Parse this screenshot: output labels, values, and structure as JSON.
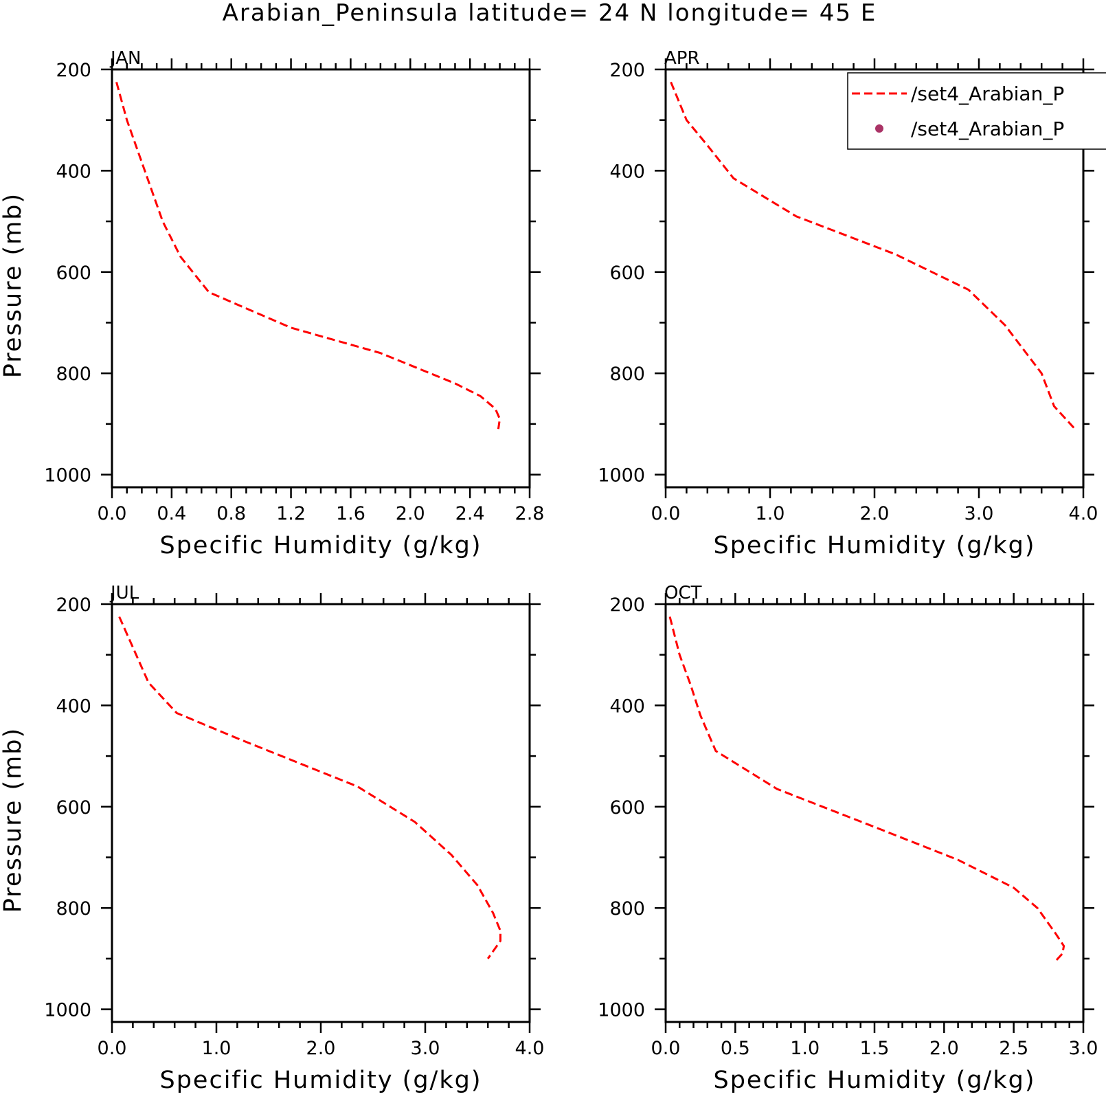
{
  "title": "Arabian_Peninsula  latitude= 24 N longitude= 45 E",
  "legend": {
    "entries": [
      {
        "label": "/set4_Arabian_P",
        "style": "dashed-line",
        "color": "#ff0000"
      },
      {
        "label": "/set4_Arabian_P",
        "style": "dot",
        "color": "#aa3366"
      }
    ],
    "placement": "top-right"
  },
  "chart_data": [
    {
      "type": "line",
      "panel": "JAN",
      "title": "JAN",
      "xlabel": "Specific Humidity (g/kg)",
      "ylabel": "Pressure (mb)",
      "xlim": [
        0.0,
        2.8
      ],
      "ylim": [
        1025,
        200
      ],
      "y_inverted": true,
      "xticks": [
        0.0,
        0.4,
        0.8,
        1.2,
        1.6,
        2.0,
        2.4,
        2.8
      ],
      "xtick_labels": [
        "0.0",
        "0.4",
        "0.8",
        "1.2",
        "1.6",
        "2.0",
        "2.4",
        "2.8"
      ],
      "xminor": 0.1,
      "yticks": [
        200,
        400,
        600,
        800,
        1000
      ],
      "ytick_labels": [
        "200",
        "400",
        "600",
        "800",
        "1000"
      ],
      "yminor": 100,
      "series": [
        {
          "values": [
            [
              0.03,
              225
            ],
            [
              0.1,
              300
            ],
            [
              0.22,
              400
            ],
            [
              0.34,
              500
            ],
            [
              0.46,
              570
            ],
            [
              0.65,
              640
            ],
            [
              1.2,
              710
            ],
            [
              1.8,
              760
            ],
            [
              2.3,
              820
            ],
            [
              2.47,
              845
            ],
            [
              2.57,
              870
            ],
            [
              2.6,
              890
            ],
            [
              2.59,
              910
            ]
          ]
        }
      ]
    },
    {
      "type": "line",
      "panel": "APR",
      "title": "APR",
      "xlabel": "Specific Humidity (g/kg)",
      "ylabel": "",
      "xlim": [
        0.0,
        4.0
      ],
      "ylim": [
        1025,
        200
      ],
      "y_inverted": true,
      "xticks": [
        0.0,
        1.0,
        2.0,
        3.0,
        4.0
      ],
      "xtick_labels": [
        "0.0",
        "1.0",
        "2.0",
        "3.0",
        "4.0"
      ],
      "xminor": 0.2,
      "yticks": [
        200,
        400,
        600,
        800,
        1000
      ],
      "ytick_labels": [
        "200",
        "400",
        "600",
        "800",
        "1000"
      ],
      "yminor": 100,
      "series": [
        {
          "values": [
            [
              0.05,
              225
            ],
            [
              0.12,
              260
            ],
            [
              0.2,
              300
            ],
            [
              0.4,
              350
            ],
            [
              0.65,
              415
            ],
            [
              1.25,
              490
            ],
            [
              2.2,
              565
            ],
            [
              2.9,
              635
            ],
            [
              3.25,
              705
            ],
            [
              3.6,
              800
            ],
            [
              3.72,
              865
            ],
            [
              3.92,
              910
            ]
          ]
        }
      ]
    },
    {
      "type": "line",
      "panel": "JUL",
      "title": "JUL",
      "xlabel": "Specific Humidity (g/kg)",
      "ylabel": "Pressure (mb)",
      "xlim": [
        0.0,
        4.0
      ],
      "ylim": [
        1025,
        200
      ],
      "y_inverted": true,
      "xticks": [
        0.0,
        1.0,
        2.0,
        3.0,
        4.0
      ],
      "xtick_labels": [
        "0.0",
        "1.0",
        "2.0",
        "3.0",
        "4.0"
      ],
      "xminor": 0.2,
      "yticks": [
        200,
        400,
        600,
        800,
        1000
      ],
      "ytick_labels": [
        "200",
        "400",
        "600",
        "800",
        "1000"
      ],
      "yminor": 100,
      "series": [
        {
          "values": [
            [
              0.07,
              225
            ],
            [
              0.35,
              355
            ],
            [
              0.62,
              415
            ],
            [
              1.2,
              465
            ],
            [
              2.35,
              560
            ],
            [
              2.9,
              630
            ],
            [
              3.25,
              695
            ],
            [
              3.5,
              755
            ],
            [
              3.65,
              810
            ],
            [
              3.72,
              845
            ],
            [
              3.72,
              865
            ],
            [
              3.6,
              900
            ]
          ]
        }
      ]
    },
    {
      "type": "line",
      "panel": "OCT",
      "title": "OCT",
      "xlabel": "Specific Humidity (g/kg)",
      "ylabel": "",
      "xlim": [
        0.0,
        3.0
      ],
      "ylim": [
        1025,
        200
      ],
      "y_inverted": true,
      "xticks": [
        0.0,
        0.5,
        1.0,
        1.5,
        2.0,
        2.5,
        3.0
      ],
      "xtick_labels": [
        "0.0",
        "0.5",
        "1.0",
        "1.5",
        "2.0",
        "2.5",
        "3.0"
      ],
      "xminor": 0.1,
      "yticks": [
        200,
        400,
        600,
        800,
        1000
      ],
      "ytick_labels": [
        "200",
        "400",
        "600",
        "800",
        "1000"
      ],
      "yminor": 100,
      "series": [
        {
          "values": [
            [
              0.03,
              225
            ],
            [
              0.1,
              300
            ],
            [
              0.18,
              360
            ],
            [
              0.25,
              420
            ],
            [
              0.36,
              490
            ],
            [
              0.8,
              565
            ],
            [
              1.5,
              640
            ],
            [
              2.1,
              705
            ],
            [
              2.5,
              760
            ],
            [
              2.67,
              800
            ],
            [
              2.8,
              850
            ],
            [
              2.86,
              875
            ],
            [
              2.85,
              890
            ],
            [
              2.8,
              905
            ]
          ]
        }
      ]
    }
  ]
}
